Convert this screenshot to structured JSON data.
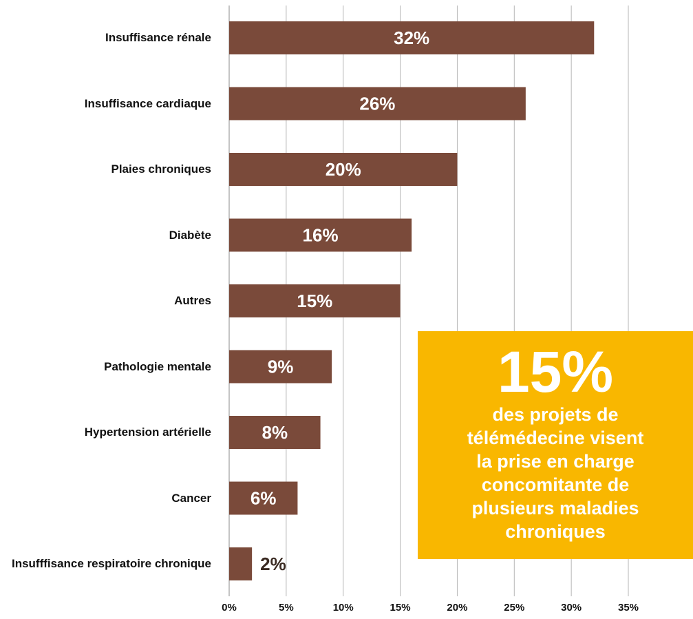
{
  "chart_data": {
    "type": "bar",
    "orientation": "horizontal",
    "categories": [
      "Insuffisance rénale",
      "Insuffisance cardiaque",
      "Plaies chroniques",
      "Diabète",
      "Autres",
      "Pathologie mentale",
      "Hypertension artérielle",
      "Cancer",
      "Insufffisance respiratoire chronique"
    ],
    "values": [
      32,
      26,
      20,
      16,
      15,
      9,
      8,
      6,
      2
    ],
    "value_labels": [
      "32%",
      "26%",
      "20%",
      "16%",
      "15%",
      "9%",
      "8%",
      "6%",
      "2%"
    ],
    "color": "#7a4a3a",
    "xlim": [
      0,
      35
    ],
    "xticks": [
      {
        "value": 0,
        "label": "0%"
      },
      {
        "value": 5,
        "label": "5%"
      },
      {
        "value": 10,
        "label": "10%"
      },
      {
        "value": 15,
        "label": "15%"
      },
      {
        "value": 20,
        "label": "20%"
      },
      {
        "value": 25,
        "label": "25%"
      },
      {
        "value": 30,
        "label": "30%"
      },
      {
        "value": 35,
        "label": "35%"
      }
    ],
    "grid": true,
    "annotation": {
      "headline": "15%",
      "lines": [
        "des projets de",
        "télémédecine visent",
        "la prise en charge",
        "concomitante de",
        "plusieurs maladies",
        "chroniques"
      ]
    }
  }
}
